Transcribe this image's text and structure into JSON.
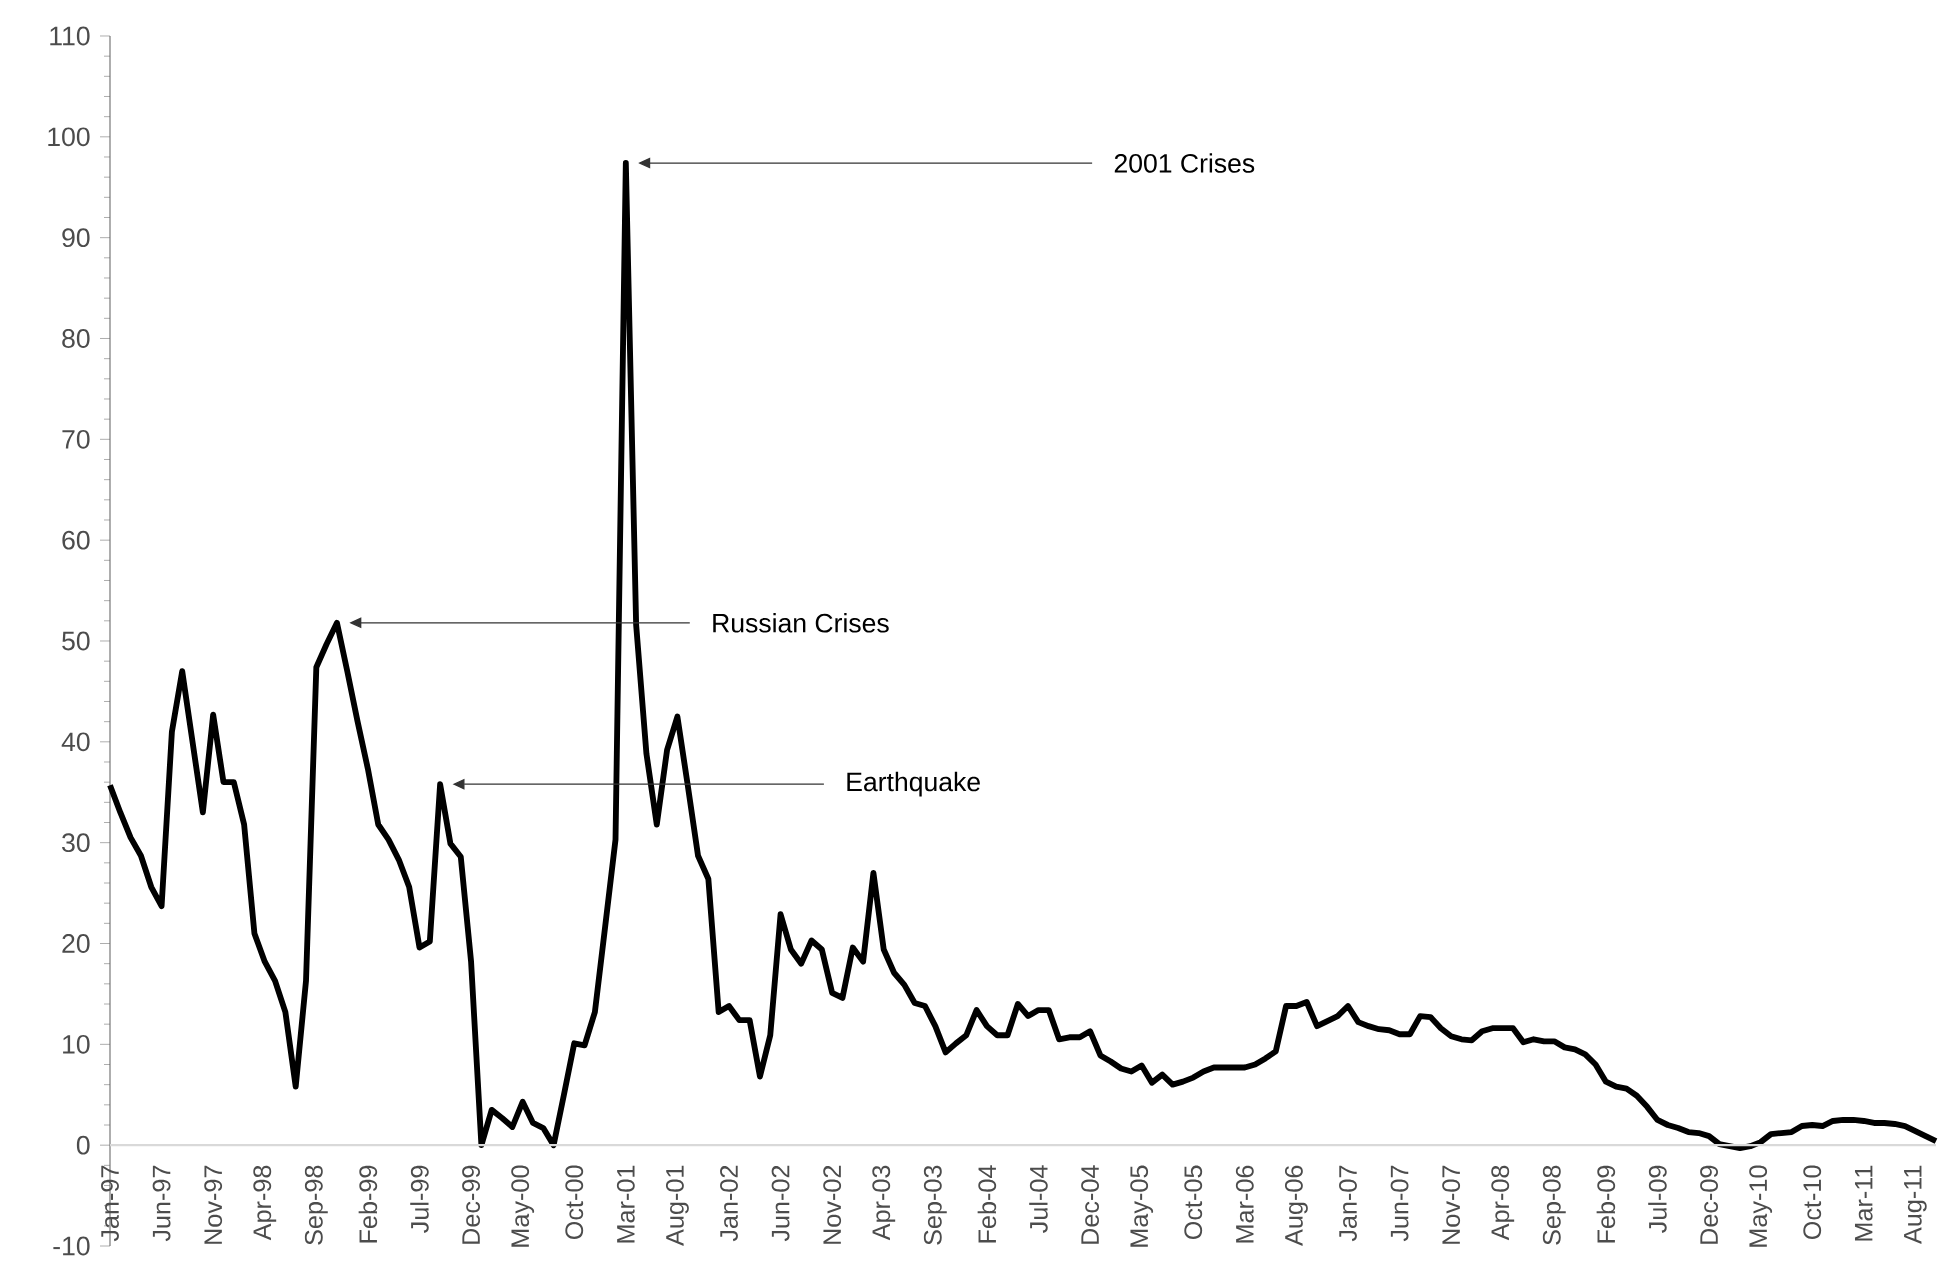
{
  "chart_data": {
    "type": "line",
    "categories": [
      "Jan-97",
      null,
      null,
      null,
      null,
      "Jun-97",
      null,
      null,
      null,
      null,
      "Nov-97",
      null,
      null,
      null,
      null,
      "Apr-98",
      null,
      null,
      null,
      null,
      "Sep-98",
      null,
      null,
      null,
      null,
      "Feb-99",
      null,
      null,
      null,
      null,
      "Jul-99",
      null,
      null,
      null,
      null,
      "Dec-99",
      null,
      null,
      null,
      null,
      "May-00",
      null,
      null,
      null,
      null,
      "Oct-00",
      null,
      null,
      null,
      null,
      "Mar-01",
      null,
      null,
      null,
      null,
      "Aug-01",
      null,
      null,
      null,
      null,
      "Jan-02",
      null,
      null,
      null,
      null,
      "Jun-02",
      null,
      null,
      null,
      null,
      "Nov-02",
      null,
      null,
      null,
      null,
      "Apr-03",
      null,
      null,
      null,
      null,
      "Sep-03",
      null,
      null,
      null,
      null,
      "Feb-04",
      null,
      null,
      null,
      null,
      "Jul-04",
      null,
      null,
      null,
      null,
      "Dec-04",
      null,
      null,
      null,
      null,
      "May-05",
      null,
      null,
      null,
      null,
      "Oct-05",
      null,
      null,
      null,
      null,
      "Mar-06",
      null,
      null,
      null,
      null,
      "Aug-06",
      null,
      null,
      null,
      null,
      "Jan-07",
      null,
      null,
      null,
      null,
      "Jun-07",
      null,
      null,
      null,
      null,
      "Nov-07",
      null,
      null,
      null,
      null,
      "Apr-08",
      null,
      null,
      null,
      null,
      "Sep-08",
      null,
      null,
      null,
      null,
      "Feb-09",
      null,
      null,
      null,
      null,
      "Jul-09",
      null,
      null,
      null,
      null,
      "Dec-09",
      null,
      null,
      null,
      null,
      "May-10",
      null,
      null,
      null,
      null,
      "Oct-10",
      null,
      null,
      null,
      null,
      "Mar-11",
      null,
      null,
      null,
      null,
      "Aug-11",
      null,
      null
    ],
    "values": [
      35.7,
      33,
      30.5,
      28.7,
      25.6,
      23.7,
      41,
      47,
      40,
      33,
      42.7,
      36,
      36,
      31.8,
      21,
      18.2,
      16.3,
      13.2,
      5.8,
      16.3,
      47.4,
      49.7,
      51.8,
      47,
      42,
      37.3,
      31.8,
      30.3,
      28.3,
      25.6,
      19.6,
      20.2,
      35.8,
      29.9,
      28.6,
      18.2,
      0,
      3.5,
      2.7,
      1.8,
      4.3,
      2.2,
      1.7,
      0,
      5,
      10.1,
      9.9,
      13.2,
      21.7,
      30.3,
      97.4,
      51.6,
      38.8,
      31.8,
      39.2,
      42.5,
      35.7,
      28.7,
      26.4,
      13.2,
      13.8,
      12.4,
      12.4,
      6.8,
      10.9,
      22.9,
      19.4,
      18,
      20.3,
      19.4,
      15.1,
      14.6,
      19.6,
      18.2,
      27,
      19.4,
      17.1,
      15.9,
      14.1,
      13.8,
      11.8,
      9.2,
      10.1,
      10.9,
      13.4,
      11.8,
      10.9,
      10.9,
      14,
      12.8,
      13.4,
      13.4,
      10.5,
      10.7,
      10.7,
      11.3,
      8.9,
      8.3,
      7.6,
      7.3,
      7.9,
      6.2,
      7,
      6,
      6.3,
      6.7,
      7.3,
      7.7,
      7.7,
      7.7,
      7.7,
      8,
      8.6,
      9.3,
      13.8,
      13.8,
      14.2,
      11.8,
      12.3,
      12.8,
      13.8,
      12.2,
      11.8,
      11.5,
      11.4,
      11,
      11,
      12.8,
      12.7,
      11.6,
      10.8,
      10.5,
      10.4,
      11.3,
      11.6,
      11.6,
      11.6,
      10.2,
      10.5,
      10.3,
      10.3,
      9.7,
      9.5,
      9,
      8,
      6.3,
      5.8,
      5.6,
      4.9,
      3.8,
      2.5,
      2,
      1.7,
      1.3,
      1.2,
      0.9,
      0.1,
      -0.1,
      -0.3,
      -0.1,
      0.3,
      1.1,
      1.2,
      1.3,
      1.9,
      2,
      1.9,
      2.4,
      2.5,
      2.5,
      2.4,
      2.2,
      2.2,
      2.1,
      1.9,
      1.4,
      0.9,
      0.4
    ],
    "color": "#000000",
    "ylim": [
      -10,
      110
    ],
    "yticks": [
      -10,
      0,
      10,
      20,
      30,
      40,
      50,
      60,
      70,
      80,
      90,
      100,
      110
    ],
    "annotations": [
      "2001 Crises",
      "Russian Crises",
      "Earthquake"
    ]
  }
}
